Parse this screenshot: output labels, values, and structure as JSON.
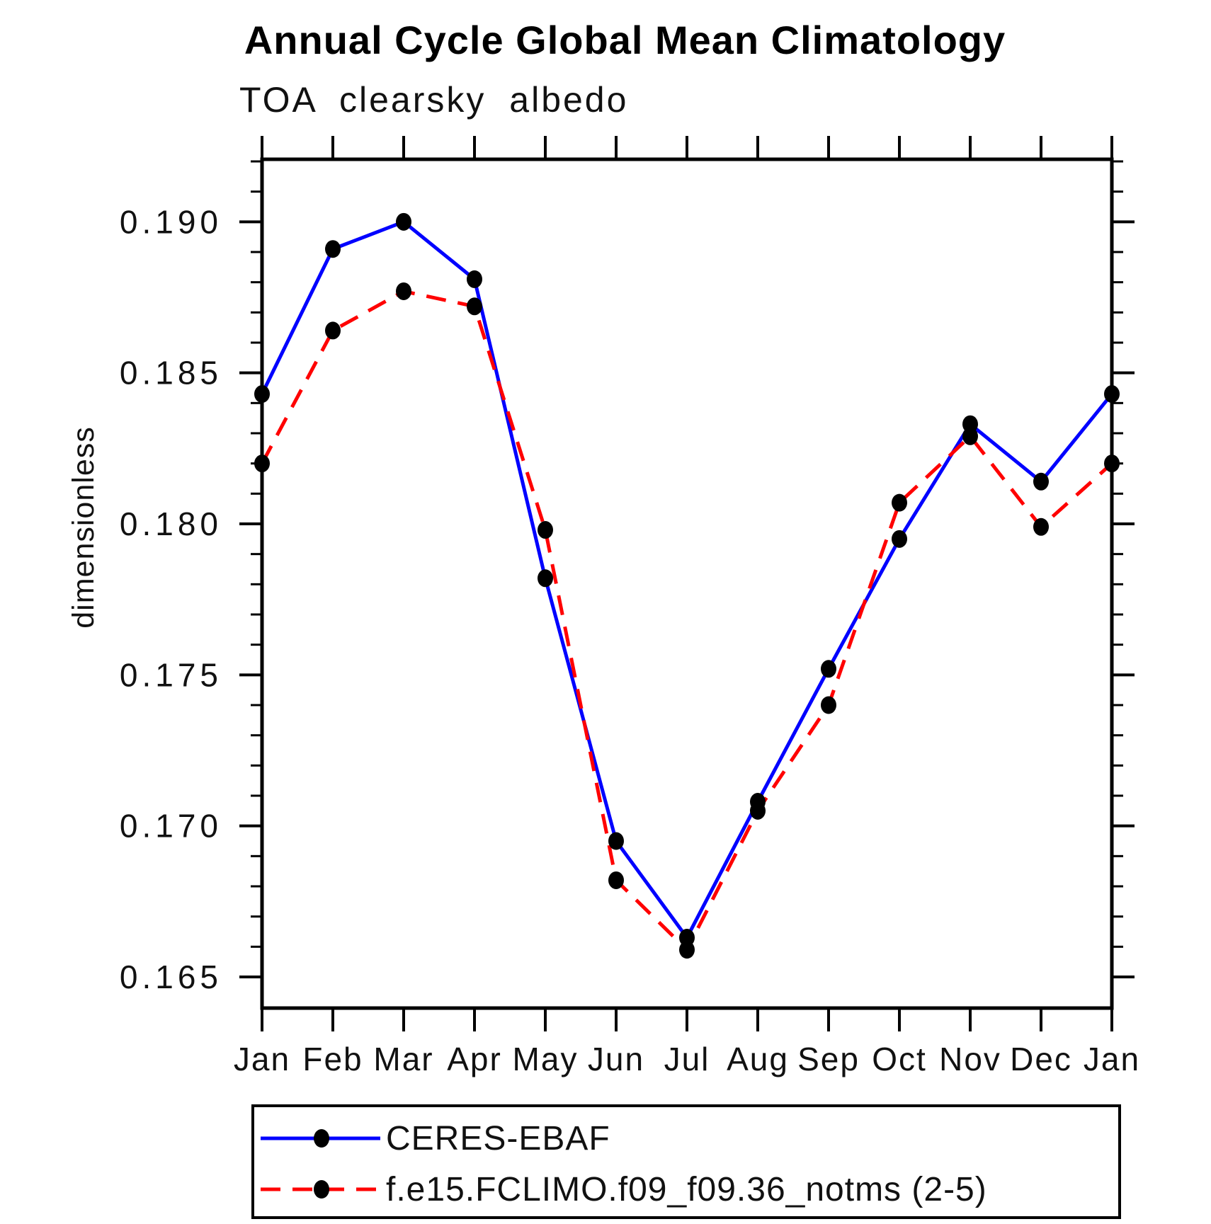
{
  "chart_data": {
    "type": "line",
    "title": "Annual Cycle Global Mean Climatology",
    "subtitle": "TOA clearsky albedo",
    "xlabel": "",
    "ylabel": "dimensionless",
    "x_categories": [
      "Jan",
      "Feb",
      "Mar",
      "Apr",
      "May",
      "Jun",
      "Jul",
      "Aug",
      "Sep",
      "Oct",
      "Nov",
      "Dec",
      "Jan"
    ],
    "y_major_ticks": [
      0.165,
      0.17,
      0.175,
      0.18,
      0.185,
      0.19
    ],
    "y_minor_tick_step": 0.001,
    "ylim": [
      0.164,
      0.192
    ],
    "grid": false,
    "legend_position": "bottom-left-box",
    "series": [
      {
        "name": "CERES-EBAF",
        "color": "#0000ff",
        "line_style": "solid",
        "marker": "filled-circle",
        "marker_color": "#000000",
        "values": [
          0.1843,
          0.1891,
          0.19,
          0.1881,
          0.1782,
          0.1695,
          0.1663,
          0.1708,
          0.1752,
          0.1795,
          0.1833,
          0.1814,
          0.1843
        ]
      },
      {
        "name": "f.e15.FCLIMO.f09_f09.36_notms (2-5)",
        "color": "#ff0000",
        "line_style": "dashed",
        "marker": "filled-circle",
        "marker_color": "#000000",
        "values": [
          0.182,
          0.1864,
          0.1877,
          0.1872,
          0.1798,
          0.1682,
          0.1659,
          0.1705,
          0.174,
          0.1807,
          0.1829,
          0.1799,
          0.182
        ]
      }
    ]
  },
  "colors": {
    "background": "#ffffff",
    "axis": "#000000",
    "text": "#000000"
  }
}
